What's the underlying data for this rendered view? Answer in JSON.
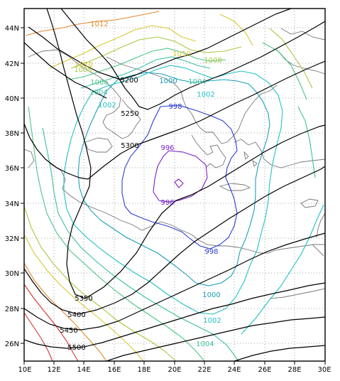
{
  "map": {
    "lon_ticks": [
      "10E",
      "12E",
      "14E",
      "16E",
      "18E",
      "20E",
      "22E",
      "24E",
      "26E",
      "28E",
      "30E"
    ],
    "lat_ticks": [
      "26N",
      "28N",
      "30N",
      "32N",
      "34N",
      "36N",
      "38N",
      "40N",
      "42N",
      "44N"
    ],
    "colors": {
      "frame": "#000000",
      "grid": "#888888",
      "coast": "#777777",
      "height": "#000000",
      "slp_purple": "#7a22c8",
      "slp_blue": "#2e3fd0",
      "slp_teal": "#1aa0b4",
      "slp_cyan": "#24c0c4",
      "slp_green": "#4cc488",
      "slp_yellowgreen": "#a6c840",
      "slp_yellow": "#d8c830",
      "slp_orange": "#e08a30",
      "slp_red": "#d83030"
    },
    "height_labels": [
      "5200",
      "5250",
      "5300",
      "5350",
      "5400",
      "5450",
      "5500"
    ],
    "slp_labels": [
      "1012",
      "1010",
      "1008",
      "1010",
      "1008",
      "1006",
      "1004",
      "1002",
      "1000",
      "1004",
      "1002",
      "998",
      "996",
      "996",
      "998",
      "1000",
      "1002",
      "1004"
    ]
  }
}
